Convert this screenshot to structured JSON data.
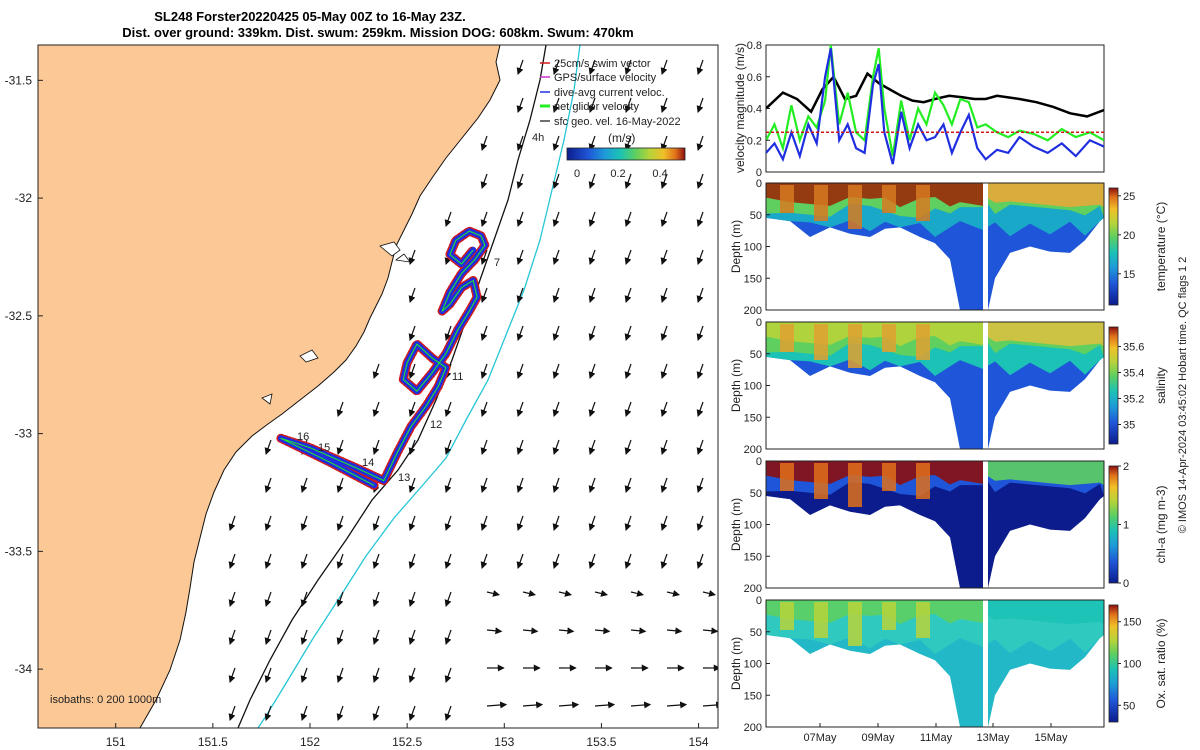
{
  "title": {
    "line1": "SL248 Forster20220425 05-May 00Z to 16-May 23Z.",
    "line2": "Dist. over ground: 339km. Dist. swum: 259km. Mission DOG: 608km. Swum: 470km"
  },
  "credit": "© IMOS 14-Apr-2024 03:45:02 Hobart time. QC flags 1  2",
  "map": {
    "legend": [
      "25cm/s swim vector",
      "GPS/surface velocity",
      "dive-avg current veloc.",
      "net glider velocity",
      "sfc geo. vel. 16-May-2022"
    ],
    "legend_extra": "4h",
    "colorbar_label": "(m/s)",
    "colorbar_ticks": [
      "0",
      "0.2",
      "0.4"
    ],
    "isobaths": "isobaths: 0   200  1000m",
    "day_labels": [
      "7",
      "11",
      "12",
      "13",
      "14",
      "15",
      "16"
    ]
  },
  "colors": {
    "land": "#fbc896",
    "swim": "#d21a1a",
    "gps": "#cc33cc",
    "dive": "#1f2fe0",
    "net": "#22ee22",
    "shelf": "#26c6d6"
  },
  "chart_data": [
    {
      "type": "line",
      "title": "",
      "xlabel": "",
      "ylabel": "",
      "x_ticks": [
        151,
        151.5,
        152,
        152.5,
        153,
        153.5,
        154
      ],
      "y_ticks": [
        -31.5,
        -32,
        -32.5,
        -33,
        -33.5,
        -34
      ],
      "x_tick_labels": [
        "151",
        "151.5",
        "152",
        "152.5",
        "153",
        "153.5",
        "154"
      ],
      "y_tick_labels": [
        "-31.5",
        "-32",
        "-32.5",
        "-33",
        "-33.5",
        "-34"
      ],
      "xlim": [
        150.6,
        154.1
      ],
      "ylim": [
        -34.25,
        -31.35
      ],
      "series": [
        {
          "name": "dive-avg current veloc.",
          "x": [
            152.33,
            152.1,
            151.85,
            152.0,
            152.25,
            152.38,
            152.45,
            152.52,
            152.6,
            152.66,
            152.7,
            152.63,
            152.55,
            152.5,
            152.48,
            152.55,
            152.63,
            152.7,
            152.76,
            152.82,
            152.86,
            152.84,
            152.78,
            152.72,
            152.68,
            152.72,
            152.78,
            152.85,
            152.9,
            152.88,
            152.82,
            152.75,
            152.72,
            152.78,
            152.84
          ],
          "y": [
            -33.22,
            -33.12,
            -33.02,
            -33.06,
            -33.15,
            -33.2,
            -33.08,
            -32.97,
            -32.88,
            -32.8,
            -32.72,
            -32.68,
            -32.62,
            -32.7,
            -32.77,
            -32.82,
            -32.74,
            -32.66,
            -32.56,
            -32.48,
            -32.42,
            -32.35,
            -32.38,
            -32.45,
            -32.48,
            -32.4,
            -32.32,
            -32.26,
            -32.2,
            -32.16,
            -32.14,
            -32.18,
            -32.24,
            -32.28,
            -32.22
          ]
        }
      ]
    },
    {
      "type": "line",
      "title": "",
      "xlabel": "",
      "ylabel": "velocity magnitude (m/s)",
      "ylim": [
        0,
        0.8
      ],
      "y_ticks": [
        0,
        0.2,
        0.4,
        0.6,
        0.8
      ],
      "y_tick_labels": [
        "0",
        "0.2",
        "0.4",
        "0.6",
        "0.8"
      ],
      "x_range_days": [
        5.0,
        17.0
      ],
      "series": [
        {
          "name": "",
          "color": "#000000",
          "x": [
            5.0,
            5.6,
            6.1,
            6.6,
            7.0,
            7.4,
            7.8,
            8.2,
            8.6,
            9.0,
            9.4,
            9.8,
            10.2,
            10.6,
            11.0,
            11.5,
            12.0,
            12.4,
            12.8,
            13.2,
            13.6,
            14.0,
            14.6,
            15.2,
            15.8,
            16.4,
            17.0
          ],
          "y": [
            0.4,
            0.5,
            0.46,
            0.38,
            0.52,
            0.6,
            0.46,
            0.48,
            0.62,
            0.56,
            0.52,
            0.48,
            0.45,
            0.44,
            0.46,
            0.48,
            0.47,
            0.46,
            0.46,
            0.48,
            0.47,
            0.46,
            0.44,
            0.41,
            0.37,
            0.35,
            0.39
          ]
        },
        {
          "name": "",
          "color": "#22ee22",
          "x": [
            5.0,
            5.3,
            5.6,
            5.9,
            6.2,
            6.5,
            6.8,
            7.1,
            7.3,
            7.6,
            7.9,
            8.2,
            8.5,
            8.8,
            9.0,
            9.2,
            9.5,
            9.8,
            10.1,
            10.4,
            10.7,
            11.0,
            11.3,
            11.6,
            11.9,
            12.2,
            12.5,
            12.8,
            13.2,
            13.6,
            14.0,
            14.5,
            15.0,
            15.5,
            16.0,
            16.5,
            17.0
          ],
          "y": [
            0.2,
            0.3,
            0.15,
            0.42,
            0.2,
            0.35,
            0.28,
            0.45,
            0.8,
            0.3,
            0.5,
            0.25,
            0.2,
            0.6,
            0.78,
            0.4,
            0.1,
            0.45,
            0.2,
            0.4,
            0.3,
            0.5,
            0.42,
            0.3,
            0.46,
            0.44,
            0.28,
            0.3,
            0.25,
            0.22,
            0.26,
            0.24,
            0.2,
            0.27,
            0.22,
            0.25,
            0.2
          ]
        },
        {
          "name": "",
          "color": "#1f2fe0",
          "x": [
            5.0,
            5.3,
            5.6,
            5.9,
            6.2,
            6.5,
            6.8,
            7.1,
            7.3,
            7.6,
            7.9,
            8.2,
            8.5,
            8.8,
            9.0,
            9.2,
            9.5,
            9.8,
            10.1,
            10.4,
            10.7,
            11.0,
            11.3,
            11.6,
            11.9,
            12.2,
            12.5,
            12.8,
            13.2,
            13.6,
            14.0,
            14.5,
            15.0,
            15.5,
            16.0,
            16.5,
            17.0
          ],
          "y": [
            0.12,
            0.18,
            0.08,
            0.25,
            0.1,
            0.3,
            0.18,
            0.6,
            0.78,
            0.2,
            0.3,
            0.15,
            0.12,
            0.55,
            0.68,
            0.25,
            0.05,
            0.38,
            0.15,
            0.3,
            0.2,
            0.22,
            0.3,
            0.12,
            0.25,
            0.36,
            0.15,
            0.08,
            0.14,
            0.12,
            0.22,
            0.16,
            0.12,
            0.18,
            0.1,
            0.2,
            0.16
          ]
        },
        {
          "name": "",
          "color": "#d21a1a",
          "x": [
            5.0,
            17.0
          ],
          "y": [
            0.25,
            0.25
          ]
        }
      ]
    },
    {
      "type": "heatmap",
      "title": "",
      "xlabel": "",
      "ylabel": "Depth (m)",
      "colorbar_label": "temperature (°C)",
      "colorbar_ticks": [
        "15",
        "20",
        "25"
      ],
      "colorbar_range": [
        11,
        26
      ],
      "ylim": [
        200,
        0
      ],
      "y_ticks": [
        0,
        50,
        100,
        150,
        200
      ],
      "y_tick_labels": [
        "0",
        "50",
        "100",
        "150",
        "200"
      ],
      "palette": "parula"
    },
    {
      "type": "heatmap",
      "title": "",
      "xlabel": "",
      "ylabel": "Depth (m)",
      "colorbar_label": "salinity",
      "colorbar_ticks": [
        "35",
        "35.2",
        "35.4",
        "35.6"
      ],
      "colorbar_range": [
        34.85,
        35.75
      ],
      "ylim": [
        200,
        0
      ],
      "y_ticks": [
        0,
        50,
        100,
        150,
        200
      ],
      "y_tick_labels": [
        "0",
        "50",
        "100",
        "150",
        "200"
      ],
      "palette": "parula"
    },
    {
      "type": "heatmap",
      "title": "",
      "xlabel": "",
      "ylabel": "Depth (m)",
      "colorbar_label": "chl-a (mg m-3)",
      "colorbar_ticks": [
        "0",
        "1",
        "2"
      ],
      "colorbar_range": [
        0,
        2
      ],
      "ylim": [
        200,
        0
      ],
      "y_ticks": [
        0,
        50,
        100,
        150,
        200
      ],
      "y_tick_labels": [
        "0",
        "50",
        "100",
        "150",
        "200"
      ],
      "palette": "parula"
    },
    {
      "type": "heatmap",
      "title": "",
      "xlabel": "",
      "ylabel": "Depth (m)",
      "colorbar_label": "Ox. sat. ratio (%)",
      "colorbar_ticks": [
        "50",
        "100",
        "150"
      ],
      "colorbar_range": [
        30,
        170
      ],
      "ylim": [
        200,
        0
      ],
      "y_ticks": [
        0,
        50,
        100,
        150,
        200
      ],
      "y_tick_labels": [
        "0",
        "50",
        "100",
        "150",
        "200"
      ],
      "x_ticks": [
        "07May",
        "09May",
        "11May",
        "13May",
        "15May"
      ],
      "palette": "parula"
    }
  ]
}
